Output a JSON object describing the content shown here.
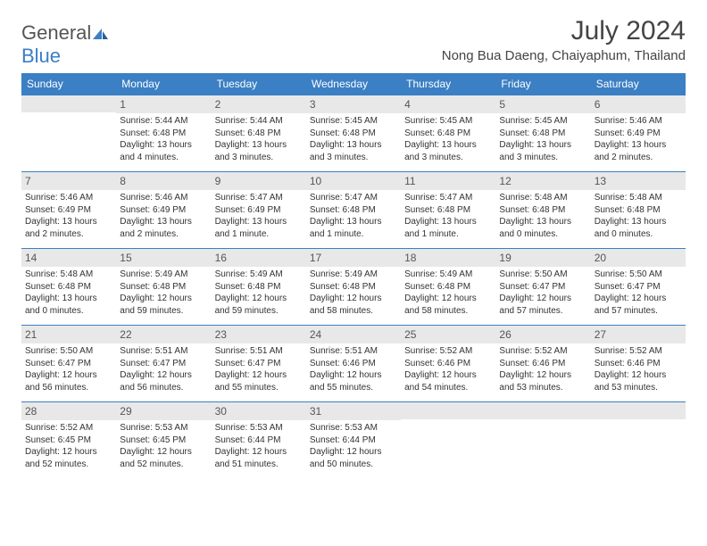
{
  "logo": {
    "general": "General",
    "blue": "Blue"
  },
  "title": "July 2024",
  "location": "Nong Bua Daeng, Chaiyaphum, Thailand",
  "colors": {
    "header_bg": "#3b7fc4",
    "daynum_bg": "#e8e8e8",
    "text": "#333333",
    "logo_gray": "#555555",
    "logo_blue": "#3b7fc4"
  },
  "weekdays": [
    "Sunday",
    "Monday",
    "Tuesday",
    "Wednesday",
    "Thursday",
    "Friday",
    "Saturday"
  ],
  "weeks": [
    [
      {
        "n": "",
        "lines": []
      },
      {
        "n": "1",
        "lines": [
          "Sunrise: 5:44 AM",
          "Sunset: 6:48 PM",
          "Daylight: 13 hours",
          "and 4 minutes."
        ]
      },
      {
        "n": "2",
        "lines": [
          "Sunrise: 5:44 AM",
          "Sunset: 6:48 PM",
          "Daylight: 13 hours",
          "and 3 minutes."
        ]
      },
      {
        "n": "3",
        "lines": [
          "Sunrise: 5:45 AM",
          "Sunset: 6:48 PM",
          "Daylight: 13 hours",
          "and 3 minutes."
        ]
      },
      {
        "n": "4",
        "lines": [
          "Sunrise: 5:45 AM",
          "Sunset: 6:48 PM",
          "Daylight: 13 hours",
          "and 3 minutes."
        ]
      },
      {
        "n": "5",
        "lines": [
          "Sunrise: 5:45 AM",
          "Sunset: 6:48 PM",
          "Daylight: 13 hours",
          "and 3 minutes."
        ]
      },
      {
        "n": "6",
        "lines": [
          "Sunrise: 5:46 AM",
          "Sunset: 6:49 PM",
          "Daylight: 13 hours",
          "and 2 minutes."
        ]
      }
    ],
    [
      {
        "n": "7",
        "lines": [
          "Sunrise: 5:46 AM",
          "Sunset: 6:49 PM",
          "Daylight: 13 hours",
          "and 2 minutes."
        ]
      },
      {
        "n": "8",
        "lines": [
          "Sunrise: 5:46 AM",
          "Sunset: 6:49 PM",
          "Daylight: 13 hours",
          "and 2 minutes."
        ]
      },
      {
        "n": "9",
        "lines": [
          "Sunrise: 5:47 AM",
          "Sunset: 6:49 PM",
          "Daylight: 13 hours",
          "and 1 minute."
        ]
      },
      {
        "n": "10",
        "lines": [
          "Sunrise: 5:47 AM",
          "Sunset: 6:48 PM",
          "Daylight: 13 hours",
          "and 1 minute."
        ]
      },
      {
        "n": "11",
        "lines": [
          "Sunrise: 5:47 AM",
          "Sunset: 6:48 PM",
          "Daylight: 13 hours",
          "and 1 minute."
        ]
      },
      {
        "n": "12",
        "lines": [
          "Sunrise: 5:48 AM",
          "Sunset: 6:48 PM",
          "Daylight: 13 hours",
          "and 0 minutes."
        ]
      },
      {
        "n": "13",
        "lines": [
          "Sunrise: 5:48 AM",
          "Sunset: 6:48 PM",
          "Daylight: 13 hours",
          "and 0 minutes."
        ]
      }
    ],
    [
      {
        "n": "14",
        "lines": [
          "Sunrise: 5:48 AM",
          "Sunset: 6:48 PM",
          "Daylight: 13 hours",
          "and 0 minutes."
        ]
      },
      {
        "n": "15",
        "lines": [
          "Sunrise: 5:49 AM",
          "Sunset: 6:48 PM",
          "Daylight: 12 hours",
          "and 59 minutes."
        ]
      },
      {
        "n": "16",
        "lines": [
          "Sunrise: 5:49 AM",
          "Sunset: 6:48 PM",
          "Daylight: 12 hours",
          "and 59 minutes."
        ]
      },
      {
        "n": "17",
        "lines": [
          "Sunrise: 5:49 AM",
          "Sunset: 6:48 PM",
          "Daylight: 12 hours",
          "and 58 minutes."
        ]
      },
      {
        "n": "18",
        "lines": [
          "Sunrise: 5:49 AM",
          "Sunset: 6:48 PM",
          "Daylight: 12 hours",
          "and 58 minutes."
        ]
      },
      {
        "n": "19",
        "lines": [
          "Sunrise: 5:50 AM",
          "Sunset: 6:47 PM",
          "Daylight: 12 hours",
          "and 57 minutes."
        ]
      },
      {
        "n": "20",
        "lines": [
          "Sunrise: 5:50 AM",
          "Sunset: 6:47 PM",
          "Daylight: 12 hours",
          "and 57 minutes."
        ]
      }
    ],
    [
      {
        "n": "21",
        "lines": [
          "Sunrise: 5:50 AM",
          "Sunset: 6:47 PM",
          "Daylight: 12 hours",
          "and 56 minutes."
        ]
      },
      {
        "n": "22",
        "lines": [
          "Sunrise: 5:51 AM",
          "Sunset: 6:47 PM",
          "Daylight: 12 hours",
          "and 56 minutes."
        ]
      },
      {
        "n": "23",
        "lines": [
          "Sunrise: 5:51 AM",
          "Sunset: 6:47 PM",
          "Daylight: 12 hours",
          "and 55 minutes."
        ]
      },
      {
        "n": "24",
        "lines": [
          "Sunrise: 5:51 AM",
          "Sunset: 6:46 PM",
          "Daylight: 12 hours",
          "and 55 minutes."
        ]
      },
      {
        "n": "25",
        "lines": [
          "Sunrise: 5:52 AM",
          "Sunset: 6:46 PM",
          "Daylight: 12 hours",
          "and 54 minutes."
        ]
      },
      {
        "n": "26",
        "lines": [
          "Sunrise: 5:52 AM",
          "Sunset: 6:46 PM",
          "Daylight: 12 hours",
          "and 53 minutes."
        ]
      },
      {
        "n": "27",
        "lines": [
          "Sunrise: 5:52 AM",
          "Sunset: 6:46 PM",
          "Daylight: 12 hours",
          "and 53 minutes."
        ]
      }
    ],
    [
      {
        "n": "28",
        "lines": [
          "Sunrise: 5:52 AM",
          "Sunset: 6:45 PM",
          "Daylight: 12 hours",
          "and 52 minutes."
        ]
      },
      {
        "n": "29",
        "lines": [
          "Sunrise: 5:53 AM",
          "Sunset: 6:45 PM",
          "Daylight: 12 hours",
          "and 52 minutes."
        ]
      },
      {
        "n": "30",
        "lines": [
          "Sunrise: 5:53 AM",
          "Sunset: 6:44 PM",
          "Daylight: 12 hours",
          "and 51 minutes."
        ]
      },
      {
        "n": "31",
        "lines": [
          "Sunrise: 5:53 AM",
          "Sunset: 6:44 PM",
          "Daylight: 12 hours",
          "and 50 minutes."
        ]
      },
      {
        "n": "",
        "lines": []
      },
      {
        "n": "",
        "lines": []
      },
      {
        "n": "",
        "lines": []
      }
    ]
  ]
}
